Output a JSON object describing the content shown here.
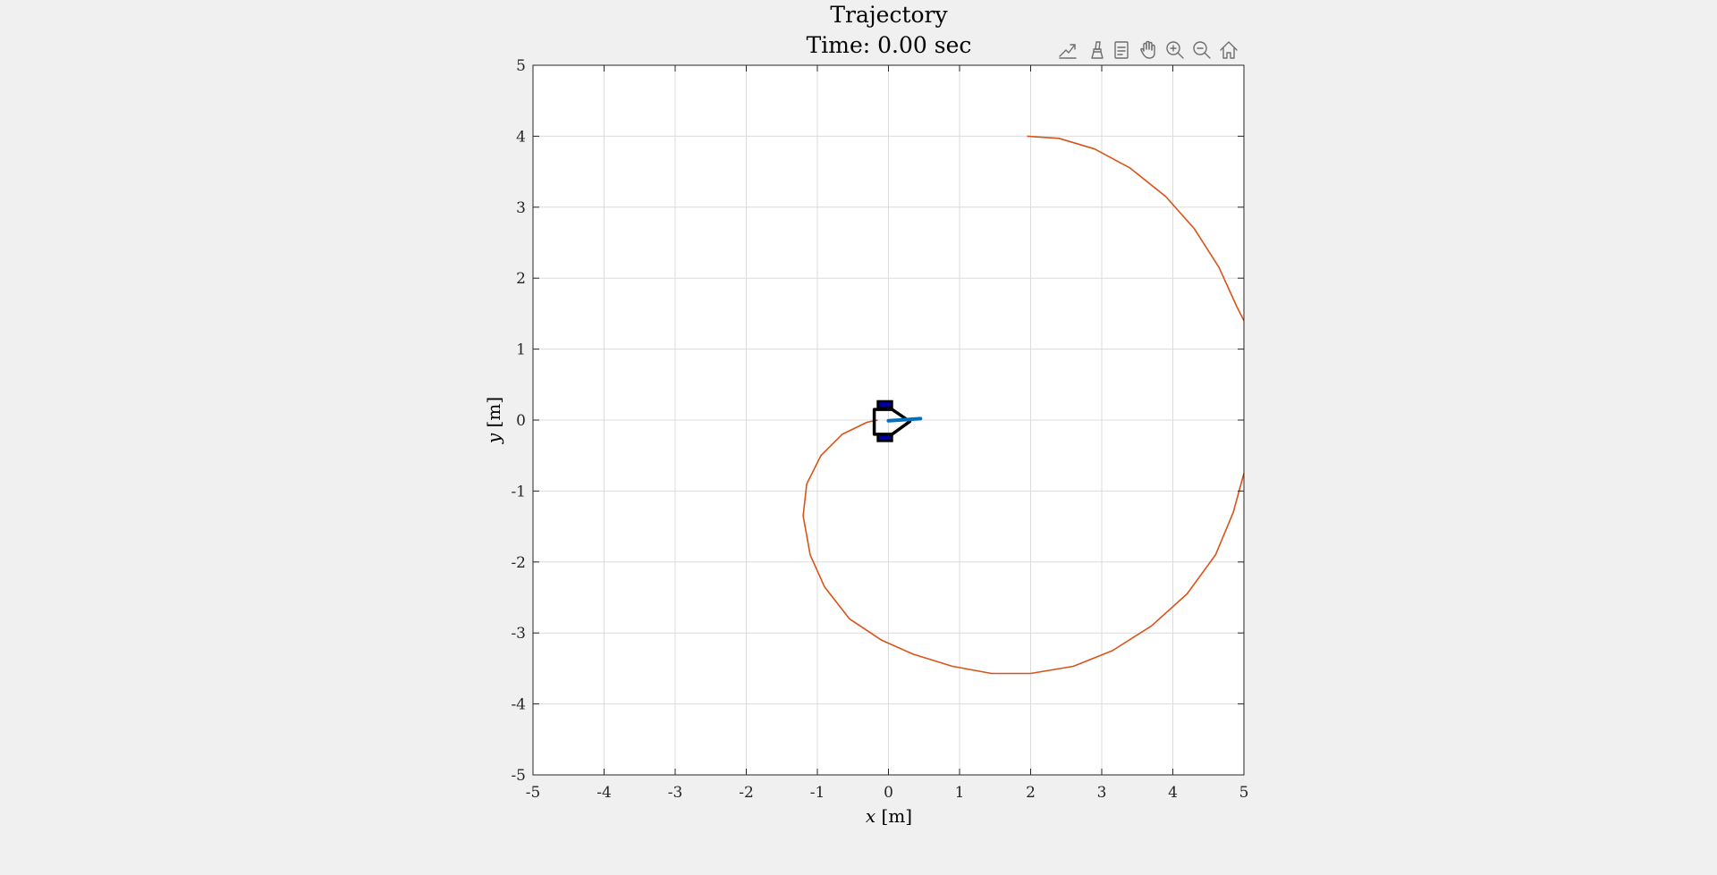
{
  "toolbar": {
    "buttons": [
      {
        "name": "export-icon"
      },
      {
        "name": "brush-icon"
      },
      {
        "name": "datatip-icon"
      },
      {
        "name": "pan-hand-icon"
      },
      {
        "name": "zoom-in-icon"
      },
      {
        "name": "zoom-out-icon"
      },
      {
        "name": "home-icon"
      }
    ]
  },
  "chart_data": {
    "type": "line",
    "title": "Trajectory",
    "subtitle": "Time: 0.00 sec",
    "xlabel_var": "x",
    "xlabel_unit": "[m]",
    "ylabel_var": "y",
    "ylabel_unit": "[m]",
    "xlim": [
      -5,
      5
    ],
    "ylim": [
      -5,
      5
    ],
    "xticks": [
      "-5",
      "-4",
      "-3",
      "-2",
      "-1",
      "0",
      "1",
      "2",
      "3",
      "4",
      "5"
    ],
    "yticks": [
      "-5",
      "-4",
      "-3",
      "-2",
      "-1",
      "0",
      "1",
      "2",
      "3",
      "4",
      "5"
    ],
    "grid": true,
    "trajectory_color": "#d95319",
    "heading_color": "#0072bd",
    "robot_color": "#000000",
    "wheel_color": "#0000a0",
    "series": [
      {
        "x": [
          1.95,
          2.4,
          2.9,
          3.4,
          3.9,
          4.3,
          4.65,
          4.9,
          5.0
        ],
        "y": [
          4.0,
          3.97,
          3.82,
          3.55,
          3.15,
          2.7,
          2.15,
          1.6,
          1.4
        ]
      },
      {
        "x": [
          5.0,
          4.85,
          4.6,
          4.2,
          3.7,
          3.15,
          2.6,
          2.0,
          1.45,
          0.9,
          0.35,
          -0.1,
          -0.55,
          -0.9,
          -1.1,
          -1.2,
          -1.15,
          -0.95,
          -0.65,
          -0.3,
          -0.15
        ],
        "y": [
          -0.75,
          -1.3,
          -1.9,
          -2.45,
          -2.9,
          -3.25,
          -3.47,
          -3.57,
          -3.57,
          -3.47,
          -3.3,
          -3.1,
          -2.8,
          -2.35,
          -1.9,
          -1.35,
          -0.9,
          -0.5,
          -0.2,
          -0.03,
          0.0
        ]
      }
    ],
    "robot": {
      "body": [
        [
          -0.2,
          0.15
        ],
        [
          0.05,
          0.15
        ],
        [
          0.3,
          -0.02
        ],
        [
          0.05,
          -0.2
        ],
        [
          -0.2,
          -0.2
        ]
      ],
      "wheels": [
        [
          -0.05,
          0.22
        ],
        [
          -0.05,
          -0.25
        ]
      ],
      "heading": [
        [
          0.0,
          -0.01
        ],
        [
          0.45,
          0.02
        ]
      ]
    }
  }
}
